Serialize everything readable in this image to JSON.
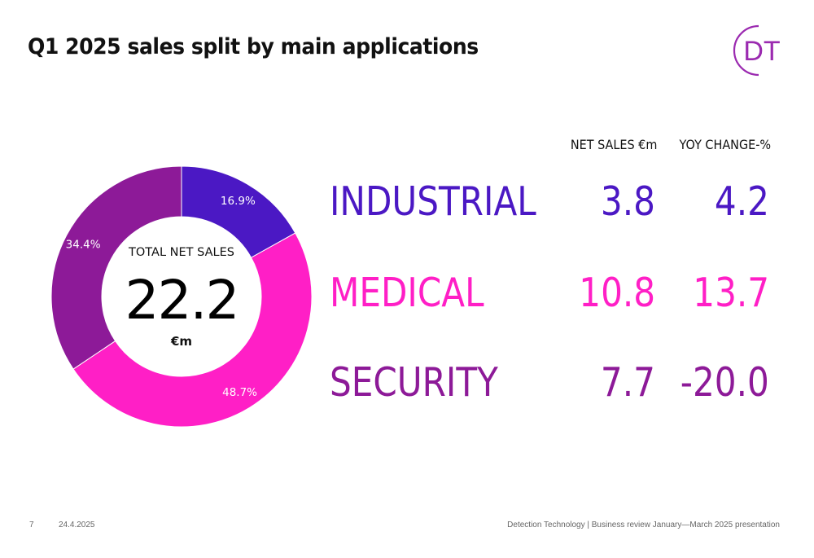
{
  "slide": {
    "title": "Q1 2025 sales split by main applications",
    "logo_text": "DT"
  },
  "colors": {
    "industrial": "#4b18c4",
    "medical": "#ff1fc6",
    "security": "#8d1a98",
    "accent": "#9b2ab0"
  },
  "chart_data": {
    "type": "pie",
    "variant": "donut",
    "center_label": "TOTAL NET SALES",
    "center_value": "22.2",
    "center_unit": "€m",
    "slices": [
      {
        "name": "INDUSTRIAL",
        "value": 16.9,
        "label": "16.9%",
        "color": "#4b18c4"
      },
      {
        "name": "MEDICAL",
        "value": 48.7,
        "label": "48.7%",
        "color": "#ff1fc6"
      },
      {
        "name": "SECURITY",
        "value": 34.4,
        "label": "34.4%",
        "color": "#8d1a98"
      }
    ]
  },
  "table": {
    "headers": {
      "net_sales": "NET SALES €m",
      "yoy": "YOY CHANGE-%"
    },
    "rows": [
      {
        "name": "INDUSTRIAL",
        "net_sales": "3.8",
        "yoy": "4.2",
        "color": "#4b18c4"
      },
      {
        "name": "MEDICAL",
        "net_sales": "10.8",
        "yoy": "13.7",
        "color": "#ff1fc6"
      },
      {
        "name": "SECURITY",
        "net_sales": "7.7",
        "yoy": "-20.0",
        "color": "#8d1a98"
      }
    ]
  },
  "footer": {
    "page_number": "7",
    "date": "24.4.2025",
    "source": "Detection Technology | Business review January—March 2025 presentation"
  }
}
